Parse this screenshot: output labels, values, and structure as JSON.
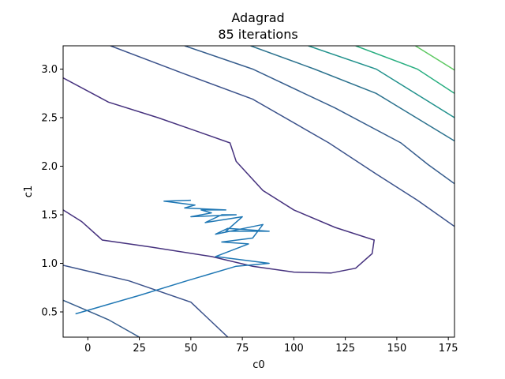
{
  "chart_data": {
    "type": "line",
    "title": "Adagrad",
    "subtitle": "85 iterations",
    "xlabel": "c0",
    "ylabel": "c1",
    "xlim": [
      -12,
      178
    ],
    "ylim": [
      0.24,
      3.24
    ],
    "xticks": [
      "0",
      "25",
      "50",
      "75",
      "100",
      "125",
      "150",
      "175"
    ],
    "yticks": [
      "0.5",
      "1.0",
      "1.5",
      "2.0",
      "2.5",
      "3.0"
    ],
    "grid": false,
    "contours": [
      {
        "color": "#46327e",
        "points": [
          [
            -12,
            1.55
          ],
          [
            -3,
            1.43
          ],
          [
            7,
            1.24
          ],
          [
            30,
            1.17
          ],
          [
            60,
            1.07
          ],
          [
            80,
            0.97
          ],
          [
            100,
            0.91
          ],
          [
            118,
            0.9
          ],
          [
            130,
            0.95
          ],
          [
            138,
            1.1
          ],
          [
            139,
            1.24
          ],
          [
            120,
            1.37
          ],
          [
            100,
            1.55
          ],
          [
            85,
            1.75
          ],
          [
            72,
            2.05
          ],
          [
            69,
            2.24
          ],
          [
            57,
            2.33
          ],
          [
            34,
            2.5
          ],
          [
            10,
            2.66
          ],
          [
            -12,
            2.91
          ]
        ]
      },
      {
        "color": "#3b528b",
        "points": [
          [
            -12,
            0.98
          ],
          [
            20,
            0.82
          ],
          [
            50,
            0.6
          ],
          [
            68,
            0.24
          ]
        ]
      },
      {
        "color": "#3b528b",
        "points": [
          [
            11,
            3.24
          ],
          [
            47,
            2.95
          ],
          [
            80,
            2.69
          ],
          [
            117,
            2.24
          ],
          [
            140,
            1.92
          ],
          [
            160,
            1.65
          ],
          [
            178,
            1.38
          ]
        ]
      },
      {
        "color": "#365d8d",
        "points": [
          [
            -12,
            0.62
          ],
          [
            10,
            0.42
          ],
          [
            25,
            0.24
          ]
        ]
      },
      {
        "color": "#365d8d",
        "points": [
          [
            47,
            3.24
          ],
          [
            80,
            3.0
          ],
          [
            120,
            2.6
          ],
          [
            152,
            2.24
          ],
          [
            165,
            2.02
          ],
          [
            178,
            1.82
          ]
        ]
      },
      {
        "color": "#2c728e",
        "points": [
          [
            79,
            3.24
          ],
          [
            110,
            3.0
          ],
          [
            140,
            2.75
          ],
          [
            178,
            2.26
          ]
        ]
      },
      {
        "color": "#21918c",
        "points": [
          [
            107,
            3.24
          ],
          [
            140,
            3.0
          ],
          [
            178,
            2.5
          ]
        ]
      },
      {
        "color": "#28ae80",
        "points": [
          [
            130,
            3.24
          ],
          [
            160,
            3.0
          ],
          [
            178,
            2.75
          ]
        ]
      },
      {
        "color": "#5ec962",
        "points": [
          [
            159,
            3.24
          ],
          [
            178,
            2.99
          ]
        ]
      }
    ],
    "series": [
      {
        "color": "#1f77b4",
        "x": [
          -6,
          25,
          48,
          72,
          88,
          62,
          78,
          65,
          80,
          85,
          62,
          68,
          88,
          67,
          75,
          57,
          65,
          72,
          50,
          60,
          55,
          67,
          47,
          52,
          37,
          50
        ],
        "y": [
          0.48,
          0.67,
          0.82,
          0.97,
          1.0,
          1.07,
          1.2,
          1.22,
          1.26,
          1.4,
          1.3,
          1.36,
          1.33,
          1.33,
          1.48,
          1.42,
          1.5,
          1.5,
          1.48,
          1.52,
          1.55,
          1.55,
          1.57,
          1.6,
          1.64,
          1.65
        ]
      }
    ]
  }
}
